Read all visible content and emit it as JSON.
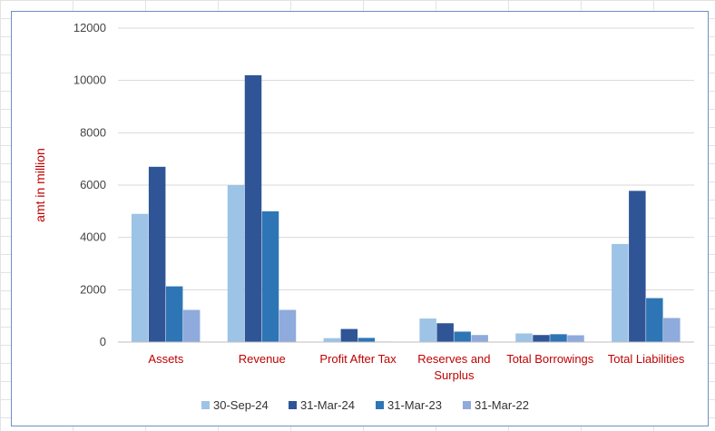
{
  "chart_data": {
    "type": "bar",
    "title": "",
    "xlabel": "",
    "ylabel": "amt in million",
    "ylim": [
      0,
      12000
    ],
    "yticks": [
      0,
      2000,
      4000,
      6000,
      8000,
      10000,
      12000
    ],
    "grid": true,
    "legend_position": "bottom",
    "categories": [
      "Assets",
      "Revenue",
      "Profit After Tax",
      "Reserves and Surplus",
      "Total Borrowings",
      "Total Liabilities"
    ],
    "series": [
      {
        "name": "30-Sep-24",
        "color": "#9dc3e6",
        "values": [
          4900,
          6000,
          150,
          900,
          330,
          3750
        ]
      },
      {
        "name": "31-Mar-24",
        "color": "#2f5597",
        "values": [
          6700,
          10200,
          500,
          720,
          270,
          5780
        ]
      },
      {
        "name": "31-Mar-23",
        "color": "#2e75b6",
        "values": [
          2130,
          5000,
          160,
          400,
          300,
          1680
        ]
      },
      {
        "name": "31-Mar-22",
        "color": "#8faadc",
        "values": [
          1230,
          1230,
          20,
          270,
          260,
          920
        ]
      }
    ]
  }
}
